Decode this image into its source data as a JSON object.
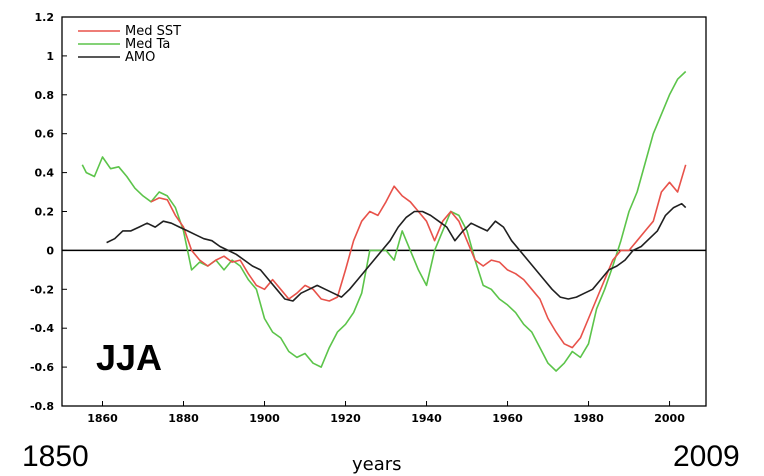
{
  "chart_data": {
    "type": "line",
    "xlabel": "years",
    "ylabel": "",
    "xlim": [
      1850,
      2009
    ],
    "ylim": [
      -0.8,
      1.2
    ],
    "xticks": [
      "1860",
      "1880",
      "1900",
      "1920",
      "1940",
      "1960",
      "1980",
      "2000"
    ],
    "yticks": [
      "1.2",
      "1",
      "0.8",
      "0.6",
      "0.4",
      "0.2",
      "0",
      "-0.2",
      "-0.4",
      "-0.6",
      "-0.8"
    ],
    "annotations": {
      "season": "JJA",
      "start_year": "1850",
      "end_year": "2009"
    },
    "legend_position": "top-left",
    "series": [
      {
        "name": "Med SST",
        "color": "#e8524a",
        "x": [
          1872,
          1874,
          1876,
          1878,
          1880,
          1882,
          1884,
          1886,
          1888,
          1890,
          1892,
          1894,
          1896,
          1898,
          1900,
          1902,
          1904,
          1906,
          1908,
          1910,
          1912,
          1914,
          1916,
          1918,
          1920,
          1922,
          1924,
          1926,
          1928,
          1930,
          1932,
          1934,
          1936,
          1938,
          1940,
          1942,
          1944,
          1946,
          1948,
          1950,
          1952,
          1954,
          1956,
          1958,
          1960,
          1962,
          1964,
          1966,
          1968,
          1970,
          1972,
          1974,
          1976,
          1978,
          1980,
          1982,
          1984,
          1986,
          1988,
          1990,
          1992,
          1994,
          1996,
          1998,
          2000,
          2002,
          2004
        ],
        "y": [
          0.25,
          0.27,
          0.26,
          0.18,
          0.12,
          0.0,
          -0.05,
          -0.08,
          -0.05,
          -0.03,
          -0.06,
          -0.05,
          -0.12,
          -0.18,
          -0.2,
          -0.15,
          -0.2,
          -0.25,
          -0.22,
          -0.18,
          -0.2,
          -0.25,
          -0.26,
          -0.24,
          -0.1,
          0.05,
          0.15,
          0.2,
          0.18,
          0.25,
          0.33,
          0.28,
          0.25,
          0.2,
          0.15,
          0.05,
          0.15,
          0.2,
          0.15,
          0.05,
          -0.05,
          -0.08,
          -0.05,
          -0.06,
          -0.1,
          -0.12,
          -0.15,
          -0.2,
          -0.25,
          -0.35,
          -0.42,
          -0.48,
          -0.5,
          -0.45,
          -0.35,
          -0.25,
          -0.15,
          -0.05,
          0.0,
          0.0,
          0.05,
          0.1,
          0.15,
          0.3,
          0.35,
          0.3,
          0.44
        ]
      },
      {
        "name": "Med Ta",
        "color": "#5cc44a",
        "x": [
          1855,
          1856,
          1858,
          1860,
          1862,
          1864,
          1866,
          1868,
          1870,
          1872,
          1874,
          1876,
          1878,
          1880,
          1882,
          1884,
          1886,
          1888,
          1890,
          1892,
          1894,
          1896,
          1898,
          1900,
          1902,
          1904,
          1906,
          1908,
          1910,
          1912,
          1914,
          1916,
          1918,
          1920,
          1922,
          1924,
          1926,
          1928,
          1930,
          1932,
          1934,
          1936,
          1938,
          1940,
          1942,
          1944,
          1946,
          1948,
          1950,
          1952,
          1954,
          1956,
          1958,
          1960,
          1962,
          1964,
          1966,
          1968,
          1970,
          1972,
          1974,
          1976,
          1978,
          1980,
          1982,
          1984,
          1986,
          1988,
          1990,
          1992,
          1994,
          1996,
          1998,
          2000,
          2002,
          2004
        ],
        "y": [
          0.44,
          0.4,
          0.38,
          0.48,
          0.42,
          0.43,
          0.38,
          0.32,
          0.28,
          0.25,
          0.3,
          0.28,
          0.22,
          0.1,
          -0.1,
          -0.06,
          -0.08,
          -0.05,
          -0.1,
          -0.05,
          -0.08,
          -0.15,
          -0.2,
          -0.35,
          -0.42,
          -0.45,
          -0.52,
          -0.55,
          -0.53,
          -0.58,
          -0.6,
          -0.5,
          -0.42,
          -0.38,
          -0.32,
          -0.22,
          0.0,
          0.0,
          0.0,
          -0.05,
          0.1,
          0.0,
          -0.1,
          -0.18,
          0.0,
          0.1,
          0.2,
          0.18,
          0.1,
          -0.05,
          -0.18,
          -0.2,
          -0.25,
          -0.28,
          -0.32,
          -0.38,
          -0.42,
          -0.5,
          -0.58,
          -0.62,
          -0.58,
          -0.52,
          -0.55,
          -0.48,
          -0.3,
          -0.2,
          -0.08,
          0.05,
          0.2,
          0.3,
          0.45,
          0.6,
          0.7,
          0.8,
          0.88,
          0.92
        ]
      },
      {
        "name": "AMO",
        "color": "#202020",
        "x": [
          1861,
          1863,
          1865,
          1867,
          1869,
          1871,
          1873,
          1875,
          1877,
          1879,
          1881,
          1883,
          1885,
          1887,
          1889,
          1891,
          1893,
          1895,
          1897,
          1899,
          1901,
          1903,
          1905,
          1907,
          1909,
          1911,
          1913,
          1915,
          1917,
          1919,
          1921,
          1923,
          1925,
          1927,
          1929,
          1931,
          1933,
          1935,
          1937,
          1939,
          1941,
          1943,
          1945,
          1947,
          1949,
          1951,
          1953,
          1955,
          1957,
          1959,
          1961,
          1963,
          1965,
          1967,
          1969,
          1971,
          1973,
          1975,
          1977,
          1979,
          1981,
          1983,
          1985,
          1987,
          1989,
          1991,
          1993,
          1995,
          1997,
          1999,
          2001,
          2003,
          2004
        ],
        "y": [
          0.04,
          0.06,
          0.1,
          0.1,
          0.12,
          0.14,
          0.12,
          0.15,
          0.14,
          0.12,
          0.1,
          0.08,
          0.06,
          0.05,
          0.02,
          0.0,
          -0.02,
          -0.05,
          -0.08,
          -0.1,
          -0.15,
          -0.2,
          -0.25,
          -0.26,
          -0.22,
          -0.2,
          -0.18,
          -0.2,
          -0.22,
          -0.24,
          -0.2,
          -0.15,
          -0.1,
          -0.05,
          0.0,
          0.05,
          0.12,
          0.17,
          0.2,
          0.2,
          0.18,
          0.15,
          0.12,
          0.05,
          0.1,
          0.14,
          0.12,
          0.1,
          0.15,
          0.12,
          0.05,
          0.0,
          -0.05,
          -0.1,
          -0.15,
          -0.2,
          -0.24,
          -0.25,
          -0.24,
          -0.22,
          -0.2,
          -0.15,
          -0.1,
          -0.08,
          -0.05,
          0.0,
          0.02,
          0.06,
          0.1,
          0.18,
          0.22,
          0.24,
          0.22
        ]
      }
    ]
  }
}
